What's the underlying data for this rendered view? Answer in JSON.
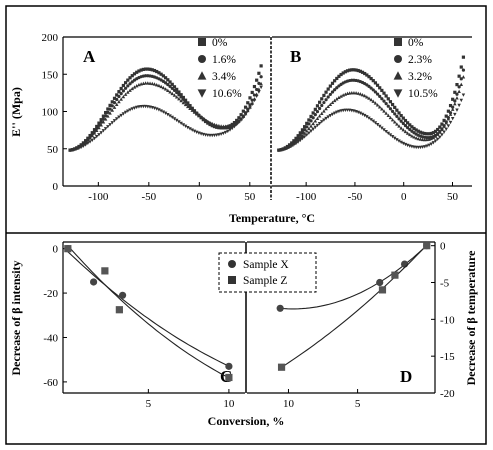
{
  "chart_data": [
    {
      "id": "A",
      "type": "scatter",
      "panel_label": "A",
      "ylabel": "E'' (Mpa)",
      "xlabel": "",
      "xlim": [
        -135,
        70
      ],
      "ylim": [
        0,
        200
      ],
      "xticks": [
        -100,
        -50,
        0,
        50
      ],
      "yticks": [
        0,
        50,
        100,
        150,
        200
      ],
      "series": [
        {
          "name": "0%",
          "marker": "square",
          "peak": 157,
          "peakT": -52,
          "valley": 78,
          "valleyT": 22,
          "end": 165
        },
        {
          "name": "1.6%",
          "marker": "circle",
          "peak": 148,
          "peakT": -52,
          "valley": 78,
          "valleyT": 25,
          "end": 150
        },
        {
          "name": "3.4%",
          "marker": "triangle-up",
          "peak": 138,
          "peakT": -52,
          "valley": 80,
          "valleyT": 25,
          "end": 140
        },
        {
          "name": "10.6%",
          "marker": "triangle-down",
          "peak": 107,
          "peakT": -55,
          "valley": 68,
          "valleyT": 12,
          "end": 135
        }
      ]
    },
    {
      "id": "B",
      "type": "scatter",
      "panel_label": "B",
      "ylabel": "",
      "xlabel": "Temperature, °C",
      "xlim": [
        -135,
        70
      ],
      "ylim": [
        0,
        200
      ],
      "xticks": [
        -100,
        -50,
        0,
        50
      ],
      "yticks": [],
      "series": [
        {
          "name": "0%",
          "marker": "square",
          "peak": 156,
          "peakT": -52,
          "valley": 70,
          "valleyT": 25,
          "end": 178
        },
        {
          "name": "2.3%",
          "marker": "circle",
          "peak": 142,
          "peakT": -52,
          "valley": 65,
          "valleyT": 25,
          "end": 160
        },
        {
          "name": "3.2%",
          "marker": "triangle-up",
          "peak": 125,
          "peakT": -52,
          "valley": 62,
          "valleyT": 22,
          "end": 150
        },
        {
          "name": "10.5%",
          "marker": "triangle-down",
          "peak": 102,
          "peakT": -58,
          "valley": 52,
          "valleyT": 15,
          "end": 125
        }
      ]
    },
    {
      "id": "C",
      "type": "scatter",
      "panel_label": "C",
      "ylabel": "Decrease of β intensity",
      "xlabel": "",
      "xlim": [
        -0.3,
        11
      ],
      "ylim": [
        -65,
        3
      ],
      "xticks": [
        5,
        10
      ],
      "yticks": [
        0,
        -20,
        -40,
        -60
      ],
      "series": [
        {
          "name": "Sample X",
          "marker": "circle",
          "x": [
            0,
            1.6,
            3.4,
            10
          ],
          "y": [
            0,
            -15,
            -21,
            -53
          ]
        },
        {
          "name": "Sample Z",
          "marker": "square",
          "x": [
            0,
            2.3,
            3.2,
            10
          ],
          "y": [
            0,
            -10,
            -27.5,
            -58
          ]
        }
      ]
    },
    {
      "id": "D",
      "type": "scatter",
      "panel_label": "D",
      "ylabel": "Decrease of β temperature",
      "xlabel": "",
      "x_reversed": true,
      "xlim": [
        -0.6,
        13
      ],
      "ylim": [
        -20,
        0.5
      ],
      "xticks": [
        5,
        10
      ],
      "yticks": [
        0,
        -5,
        -10,
        -15,
        -20
      ],
      "series": [
        {
          "name": "Sample X",
          "marker": "circle",
          "x": [
            0,
            1.6,
            3.4,
            10.6
          ],
          "y": [
            0,
            -2.5,
            -5,
            -8.5
          ]
        },
        {
          "name": "Sample Z",
          "marker": "square",
          "x": [
            0,
            2.3,
            3.2,
            10.5
          ],
          "y": [
            0,
            -4,
            -6,
            -16.5
          ]
        }
      ]
    }
  ],
  "shared_xlabel": "Conversion, %",
  "legend": [
    {
      "name": "Sample X",
      "marker": "circle"
    },
    {
      "name": "Sample Z",
      "marker": "square"
    }
  ]
}
